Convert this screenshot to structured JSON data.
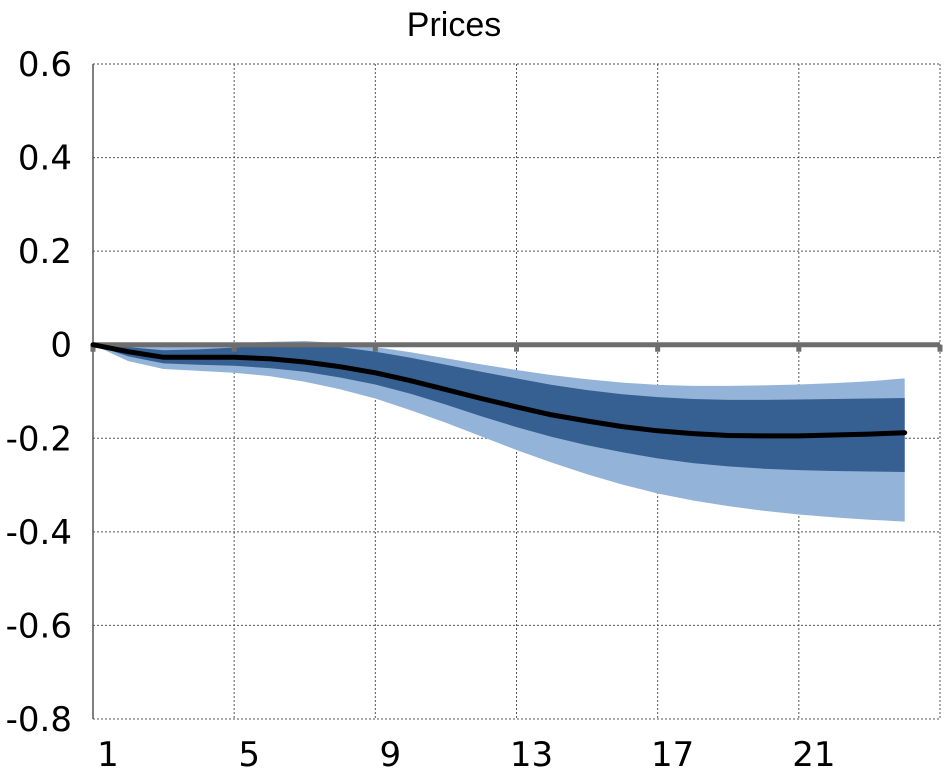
{
  "chart_data": {
    "type": "area",
    "title": "Prices",
    "xlabel": "",
    "ylabel": "",
    "x": [
      1,
      2,
      3,
      4,
      5,
      6,
      7,
      8,
      9,
      10,
      11,
      12,
      13,
      14,
      15,
      16,
      17,
      18,
      19,
      20,
      21,
      22,
      23,
      24
    ],
    "xlim": [
      1,
      25
    ],
    "ylim": [
      -0.8,
      0.6
    ],
    "x_ticks": [
      1,
      5,
      9,
      13,
      17,
      21
    ],
    "x_tick_labels": [
      "1",
      "5",
      "9",
      "13",
      "17",
      "21"
    ],
    "y_ticks": [
      0.6,
      0.4,
      0.2,
      0,
      -0.2,
      -0.4,
      -0.6,
      -0.8
    ],
    "y_tick_labels": [
      "0.6",
      "0.4",
      "0.2",
      "0",
      "-0.2",
      "-0.4",
      "-0.6",
      "-0.8"
    ],
    "grid": true,
    "series": [
      {
        "role": "median",
        "values": [
          0,
          -0.015,
          -0.027,
          -0.027,
          -0.027,
          -0.03,
          -0.037,
          -0.047,
          -0.06,
          -0.077,
          -0.096,
          -0.115,
          -0.133,
          -0.15,
          -0.163,
          -0.175,
          -0.184,
          -0.19,
          -0.194,
          -0.195,
          -0.195,
          -0.193,
          -0.191,
          -0.188
        ]
      },
      {
        "role": "inner-band",
        "upper": [
          0,
          -0.005,
          -0.012,
          -0.01,
          -0.006,
          -0.002,
          0.0,
          -0.005,
          -0.015,
          -0.028,
          -0.043,
          -0.058,
          -0.072,
          -0.086,
          -0.097,
          -0.106,
          -0.112,
          -0.116,
          -0.118,
          -0.118,
          -0.117,
          -0.116,
          -0.115,
          -0.114
        ],
        "lower": [
          0,
          -0.025,
          -0.04,
          -0.043,
          -0.045,
          -0.05,
          -0.058,
          -0.07,
          -0.085,
          -0.105,
          -0.128,
          -0.153,
          -0.176,
          -0.197,
          -0.215,
          -0.23,
          -0.243,
          -0.253,
          -0.26,
          -0.265,
          -0.268,
          -0.27,
          -0.271,
          -0.272
        ]
      },
      {
        "role": "outer-band",
        "upper": [
          0,
          0.0,
          -0.003,
          0.0,
          0.003,
          0.006,
          0.008,
          0.003,
          -0.005,
          -0.016,
          -0.029,
          -0.042,
          -0.054,
          -0.065,
          -0.074,
          -0.081,
          -0.086,
          -0.088,
          -0.088,
          -0.087,
          -0.085,
          -0.082,
          -0.078,
          -0.072
        ],
        "lower": [
          0,
          -0.035,
          -0.052,
          -0.056,
          -0.06,
          -0.067,
          -0.079,
          -0.095,
          -0.115,
          -0.14,
          -0.167,
          -0.196,
          -0.225,
          -0.252,
          -0.277,
          -0.299,
          -0.318,
          -0.333,
          -0.345,
          -0.355,
          -0.363,
          -0.369,
          -0.374,
          -0.378
        ]
      }
    ],
    "colors": {
      "median": "#000000",
      "inner_band": "#365f92",
      "outer_band": "#94b3d8",
      "zero_line": "#6d6d6d",
      "grid": "#555555"
    }
  }
}
